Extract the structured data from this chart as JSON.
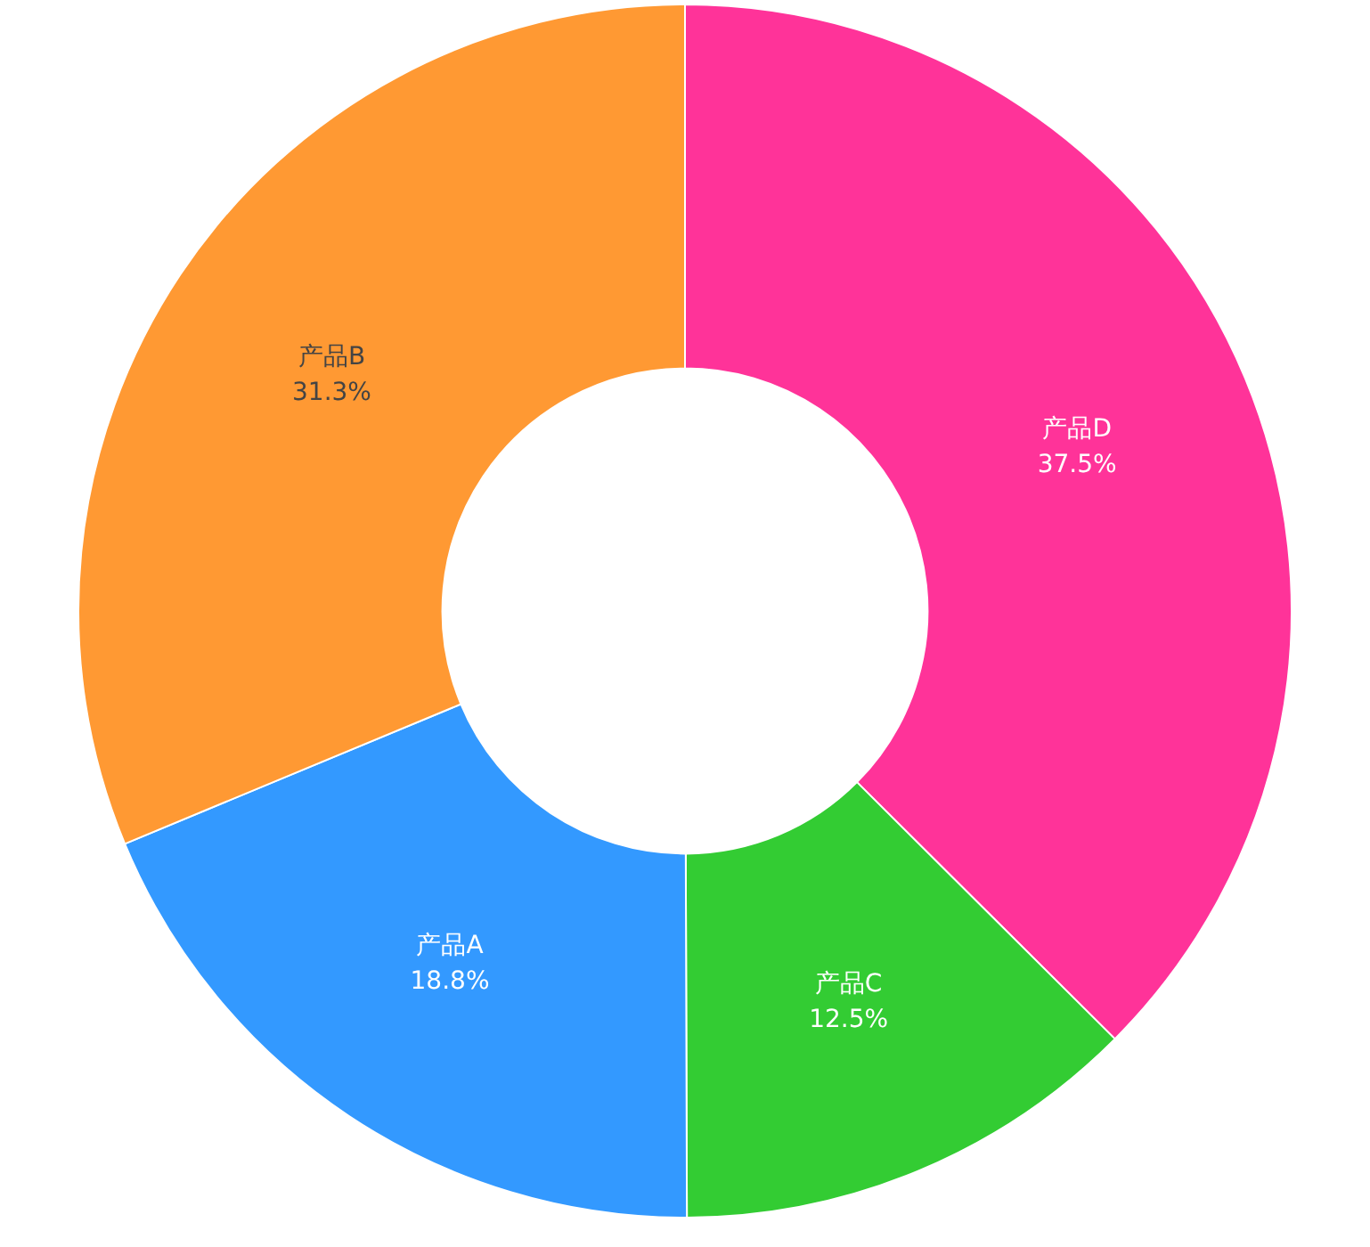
{
  "chart_data": {
    "type": "donut",
    "categories": [
      "产品D",
      "产品C",
      "产品A",
      "产品B"
    ],
    "values": [
      37.5,
      12.5,
      18.8,
      31.3
    ],
    "colors": [
      "#ff3399",
      "#33cc33",
      "#3399ff",
      "#ff9933"
    ],
    "value_labels": [
      "37.5%",
      "12.5%",
      "18.8%",
      "31.3%"
    ],
    "legend": false
  }
}
